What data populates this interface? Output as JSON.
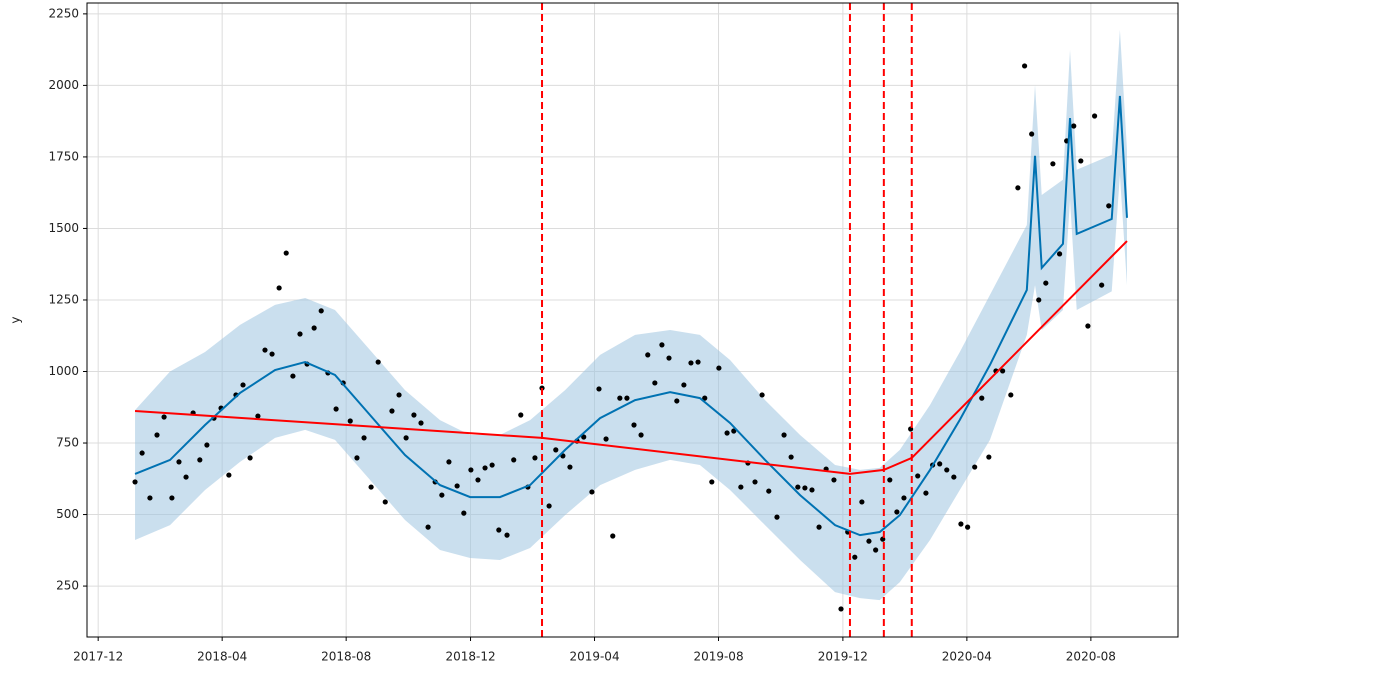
{
  "chart_data": {
    "type": "line",
    "y_label": "y",
    "grid": true,
    "xlim": [
      2017.887,
      2020.817
    ],
    "ylim": [
      72,
      2288
    ],
    "xticks": [
      {
        "value": 2017.917,
        "label": "2017-12"
      },
      {
        "value": 2018.25,
        "label": "2018-04"
      },
      {
        "value": 2018.583,
        "label": "2018-08"
      },
      {
        "value": 2018.917,
        "label": "2018-12"
      },
      {
        "value": 2019.25,
        "label": "2019-04"
      },
      {
        "value": 2019.583,
        "label": "2019-08"
      },
      {
        "value": 2019.917,
        "label": "2019-12"
      },
      {
        "value": 2020.25,
        "label": "2020-04"
      },
      {
        "value": 2020.583,
        "label": "2020-08"
      }
    ],
    "yticks": [
      250,
      500,
      750,
      1000,
      1250,
      1500,
      1750,
      2000,
      2250
    ],
    "observed": {
      "color": "#000000",
      "x": [
        2018.016,
        2018.035,
        2018.056,
        2018.075,
        2018.094,
        2018.115,
        2018.134,
        2018.153,
        2018.172,
        2018.19,
        2018.209,
        2018.228,
        2018.247,
        2018.268,
        2018.287,
        2018.306,
        2018.325,
        2018.346,
        2018.365,
        2018.384,
        2018.403,
        2018.422,
        2018.44,
        2018.459,
        2018.478,
        2018.497,
        2018.516,
        2018.534,
        2018.556,
        2018.575,
        2018.594,
        2018.612,
        2018.631,
        2018.65,
        2018.669,
        2018.688,
        2018.706,
        2018.725,
        2018.744,
        2018.765,
        2018.784,
        2018.803,
        2018.822,
        2018.84,
        2018.859,
        2018.881,
        2018.899,
        2018.918,
        2018.937,
        2018.956,
        2018.975,
        2018.993,
        2019.015,
        2019.033,
        2019.052,
        2019.071,
        2019.09,
        2019.109,
        2019.128,
        2019.146,
        2019.165,
        2019.184,
        2019.203,
        2019.221,
        2019.243,
        2019.262,
        2019.281,
        2019.299,
        2019.318,
        2019.337,
        2019.356,
        2019.375,
        2019.393,
        2019.412,
        2019.431,
        2019.45,
        2019.471,
        2019.49,
        2019.509,
        2019.528,
        2019.546,
        2019.565,
        2019.584,
        2019.606,
        2019.624,
        2019.643,
        2019.662,
        2019.681,
        2019.7,
        2019.718,
        2019.74,
        2019.759,
        2019.778,
        2019.796,
        2019.815,
        2019.834,
        2019.853,
        2019.872,
        2019.893,
        2019.912,
        2019.93,
        2019.949,
        2019.968,
        2019.987,
        2020.005,
        2020.024,
        2020.043,
        2020.062,
        2020.081,
        2020.099,
        2020.118,
        2020.14,
        2020.158,
        2020.177,
        2020.196,
        2020.215,
        2020.234,
        2020.252,
        2020.271,
        2020.29,
        2020.309,
        2020.328,
        2020.346,
        2020.368,
        2020.387,
        2020.405,
        2020.424,
        2020.443,
        2020.462,
        2020.481,
        2020.499,
        2020.518,
        2020.537,
        2020.556,
        2020.575,
        2020.593,
        2020.612,
        2020.631
      ],
      "values": [
        614,
        715,
        558,
        778,
        841,
        558,
        684,
        631,
        855,
        691,
        743,
        837,
        872,
        638,
        918,
        953,
        698,
        844,
        1075,
        1061,
        1292,
        1414,
        984,
        1131,
        1026,
        1152,
        1212,
        995,
        869,
        960,
        827,
        698,
        768,
        596,
        1033,
        544,
        862,
        918,
        768,
        848,
        820,
        456,
        614,
        568,
        684,
        600,
        505,
        656,
        621,
        663,
        673,
        446,
        428,
        691,
        848,
        596,
        698,
        942,
        530,
        726,
        705,
        666,
        757,
        771,
        579,
        939,
        764,
        425,
        907,
        907,
        813,
        778,
        1058,
        960,
        1093,
        1047,
        897,
        953,
        1030,
        1033,
        907,
        614,
        1012,
        785,
        792,
        596,
        680,
        614,
        918,
        582,
        491,
        778,
        701,
        596,
        593,
        586,
        456,
        659,
        621,
        170,
        439,
        351,
        544,
        407,
        376,
        414,
        621,
        509,
        558,
        799,
        635,
        575,
        673,
        677,
        656,
        631,
        467,
        456,
        666,
        907,
        701,
        1002,
        1002,
        918,
        1642,
        2068,
        1830,
        1250,
        1309,
        1726,
        1411,
        1806,
        1858,
        1736,
        1159,
        1893,
        1302,
        1579
      ]
    },
    "forecast": {
      "color": "#0072b2",
      "band_color": "#9ec5e0",
      "x": [
        2018.016,
        2018.11,
        2018.204,
        2018.298,
        2018.392,
        2018.473,
        2018.553,
        2018.647,
        2018.741,
        2018.835,
        2018.916,
        2018.996,
        2019.077,
        2019.171,
        2019.265,
        2019.359,
        2019.453,
        2019.533,
        2019.614,
        2019.708,
        2019.802,
        2019.896,
        2019.963,
        2020.016,
        2020.07,
        2020.151,
        2020.231,
        2020.312,
        2020.411,
        2020.433,
        2020.451,
        2020.508,
        2020.527,
        2020.545,
        2020.639,
        2020.661,
        2020.68
      ],
      "values": [
        642,
        691,
        813,
        925,
        1005,
        1033,
        988,
        848,
        708,
        603,
        561,
        561,
        603,
        726,
        837,
        900,
        928,
        907,
        820,
        691,
        568,
        463,
        428,
        439,
        498,
        656,
        831,
        1023,
        1285,
        1754,
        1362,
        1446,
        1886,
        1481,
        1533,
        1963,
        1537
      ],
      "lower": [
        411,
        463,
        586,
        684,
        768,
        796,
        761,
        621,
        481,
        376,
        348,
        341,
        383,
        498,
        603,
        656,
        691,
        673,
        586,
        463,
        341,
        229,
        208,
        201,
        264,
        411,
        586,
        761,
        1128,
        1302,
        1145,
        1215,
        1600,
        1215,
        1280,
        1687,
        1302
      ],
      "upper": [
        865,
        1000,
        1068,
        1163,
        1233,
        1257,
        1215,
        1075,
        935,
        830,
        778,
        778,
        830,
        935,
        1058,
        1128,
        1145,
        1128,
        1040,
        900,
        778,
        673,
        656,
        663,
        726,
        883,
        1068,
        1268,
        1512,
        2002,
        1617,
        1670,
        2124,
        1705,
        1757,
        2194,
        1775
      ]
    },
    "trend": {
      "color": "#ff0000",
      "x": [
        2018.016,
        2019.109,
        2019.936,
        2020.027,
        2020.102,
        2020.68
      ],
      "values": [
        862,
        768,
        642,
        656,
        698,
        1456
      ]
    },
    "changepoints": {
      "color": "#ff0000",
      "x": [
        2019.109,
        2019.936,
        2020.027,
        2020.102
      ]
    }
  }
}
